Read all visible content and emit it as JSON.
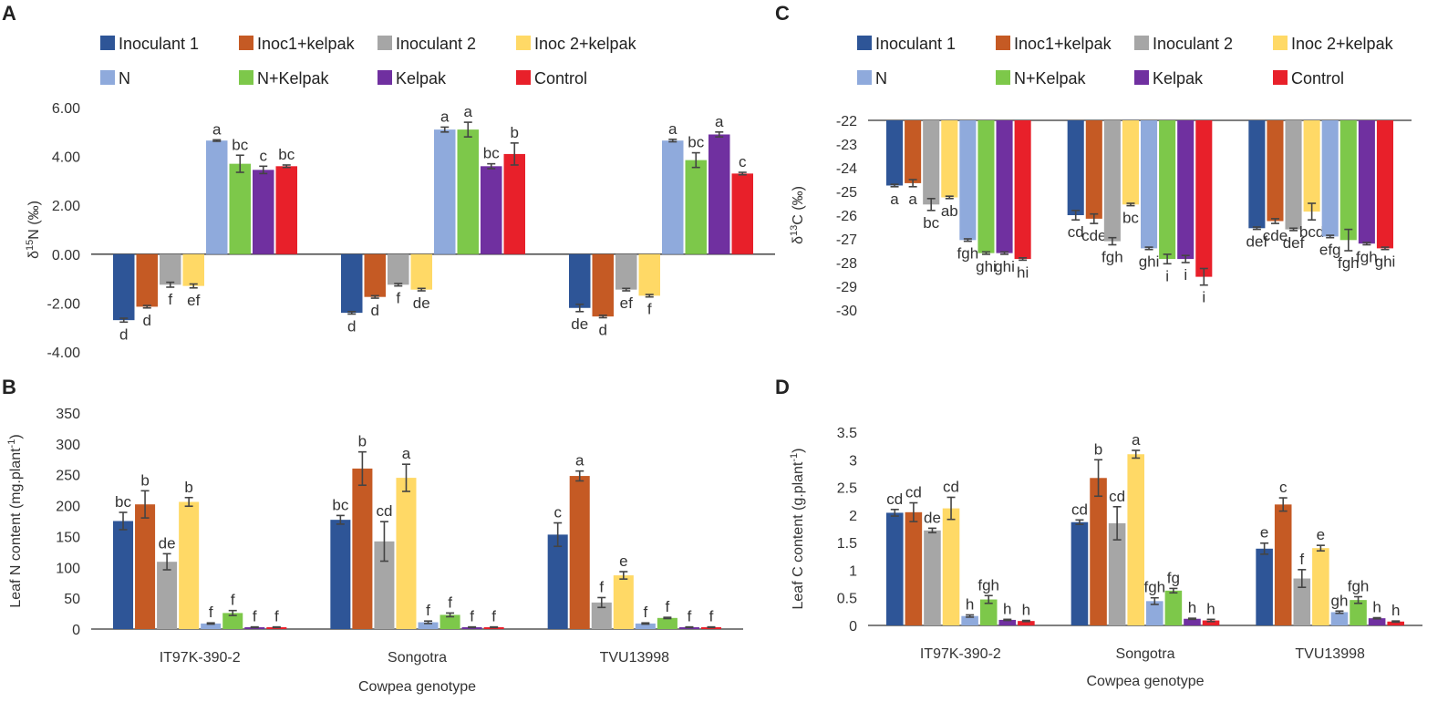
{
  "colors": {
    "Inoculant 1": "#2e5597",
    "Inoc1+kelpak": "#c55a24",
    "Inoculant 2": "#a6a6a6",
    "Inoc 2+kelpak": "#ffd966",
    "N": "#8faadc",
    "N+Kelpak": "#7dc84a",
    "Kelpak": "#7030a0",
    "Control": "#e8202a"
  },
  "chart_data": [
    {
      "panel": "A",
      "type": "bar",
      "title": "",
      "xlabel": "",
      "ylabel": "δ15N (‰)",
      "ylabel_parts": [
        "δ",
        "15",
        "N (‰)"
      ],
      "ylim": [
        -4,
        6
      ],
      "yticks": [
        6,
        4,
        2,
        0,
        -2,
        -4
      ],
      "ytick_labels": [
        "6.00",
        "4.00",
        "2.00",
        "0.00",
        "-2.00",
        "-4.00"
      ],
      "show_category_labels": false,
      "categories": [
        "IT97K-390-2",
        "Songotra",
        "TVU13998"
      ],
      "series": [
        {
          "name": "Inoculant 1",
          "values": [
            -2.7,
            -2.4,
            -2.2
          ],
          "errors": [
            0.08,
            0.05,
            0.15
          ],
          "letters": [
            "d",
            "d",
            "de"
          ]
        },
        {
          "name": "Inoc1+kelpak",
          "values": [
            -2.15,
            -1.75,
            -2.55
          ],
          "errors": [
            0.05,
            0.05,
            0.05
          ],
          "letters": [
            "d",
            "d",
            "d"
          ]
        },
        {
          "name": "Inoculant 2",
          "values": [
            -1.25,
            -1.25,
            -1.45
          ],
          "errors": [
            0.1,
            0.05,
            0.05
          ],
          "letters": [
            "f",
            "f",
            "ef"
          ]
        },
        {
          "name": "Inoc 2+kelpak",
          "values": [
            -1.3,
            -1.45,
            -1.7
          ],
          "errors": [
            0.08,
            0.05,
            0.05
          ],
          "letters": [
            "ef",
            "de",
            "f"
          ]
        },
        {
          "name": "N",
          "values": [
            4.65,
            5.1,
            4.65
          ],
          "errors": [
            0.03,
            0.1,
            0.05
          ],
          "letters": [
            "a",
            "a",
            "a"
          ]
        },
        {
          "name": "N+Kelpak",
          "values": [
            3.7,
            5.1,
            3.85
          ],
          "errors": [
            0.35,
            0.3,
            0.3
          ],
          "letters": [
            "bc",
            "a",
            "bc"
          ]
        },
        {
          "name": "Kelpak",
          "values": [
            3.45,
            3.6,
            4.9
          ],
          "errors": [
            0.15,
            0.1,
            0.1
          ],
          "letters": [
            "c",
            "bc",
            "a"
          ]
        },
        {
          "name": "Control",
          "values": [
            3.6,
            4.1,
            3.3
          ],
          "errors": [
            0.05,
            0.45,
            0.05
          ],
          "letters": [
            "bc",
            "b",
            "c"
          ]
        }
      ]
    },
    {
      "panel": "C",
      "type": "bar",
      "title": "",
      "xlabel": "",
      "ylabel": "δ13C (‰)",
      "ylabel_parts": [
        "δ",
        "13",
        "C (‰)"
      ],
      "ylim": [
        -30,
        -22
      ],
      "yticks": [
        -22,
        -23,
        -24,
        -25,
        -26,
        -27,
        -28,
        -29,
        -30
      ],
      "ytick_labels": [
        "-22",
        "-23",
        "-24",
        "-25",
        "-26",
        "-27",
        "-28",
        "-29",
        "-30"
      ],
      "show_category_labels": false,
      "categories": [
        "IT97K-390-2",
        "Songotra",
        "TVU13998"
      ],
      "series": [
        {
          "name": "Inoculant 1",
          "values": [
            -24.75,
            -26.0,
            -26.55
          ],
          "errors": [
            0.05,
            0.2,
            0.05
          ],
          "letters": [
            "a",
            "cd",
            "def"
          ]
        },
        {
          "name": "Inoc1+kelpak",
          "values": [
            -24.65,
            -26.15,
            -26.25
          ],
          "errors": [
            0.15,
            0.2,
            0.1
          ],
          "letters": [
            "a",
            "cde",
            "cde"
          ]
        },
        {
          "name": "Inoculant 2",
          "values": [
            -25.55,
            -27.1,
            -26.6
          ],
          "errors": [
            0.25,
            0.15,
            0.05
          ],
          "letters": [
            "bc",
            "fgh",
            "def"
          ]
        },
        {
          "name": "Inoc 2+kelpak",
          "values": [
            -25.25,
            -25.55,
            -25.85
          ],
          "errors": [
            0.05,
            0.05,
            0.35
          ],
          "letters": [
            "ab",
            "bc",
            "bcd"
          ]
        },
        {
          "name": "N",
          "values": [
            -27.05,
            -27.4,
            -26.9
          ],
          "errors": [
            0.05,
            0.05,
            0.05
          ],
          "letters": [
            "fgh",
            "ghi",
            "efg"
          ]
        },
        {
          "name": "N+Kelpak",
          "values": [
            -27.6,
            -27.85,
            -27.05
          ],
          "errors": [
            0.05,
            0.2,
            0.45
          ],
          "letters": [
            "ghi",
            "i",
            "fgh"
          ]
        },
        {
          "name": "Kelpak",
          "values": [
            -27.6,
            -27.85,
            -27.2
          ],
          "errors": [
            0.05,
            0.15,
            0.05
          ],
          "letters": [
            "ghi",
            "i",
            "fgh"
          ]
        },
        {
          "name": "Control",
          "values": [
            -27.85,
            -28.6,
            -27.4
          ],
          "errors": [
            0.05,
            0.35,
            0.05
          ],
          "letters": [
            "hi",
            "i",
            "ghi"
          ]
        }
      ]
    },
    {
      "panel": "B",
      "type": "bar",
      "title": "",
      "xlabel": "Cowpea genotype",
      "ylabel": "Leaf N content (mg.plant-1)",
      "ylabel_parts": [
        "Leaf N content (mg.plant",
        "-1",
        ")"
      ],
      "ylim": [
        0,
        350
      ],
      "yticks": [
        0,
        50,
        100,
        150,
        200,
        250,
        300,
        350
      ],
      "ytick_labels": [
        "0",
        "50",
        "100",
        "150",
        "200",
        "250",
        "300",
        "350"
      ],
      "show_category_labels": true,
      "categories": [
        "IT97K-390-2",
        "Songotra",
        "TVU13998"
      ],
      "series": [
        {
          "name": "Inoculant 1",
          "values": [
            175,
            177,
            153
          ],
          "errors": [
            14,
            7,
            19
          ],
          "letters": [
            "bc",
            "bc",
            "c"
          ]
        },
        {
          "name": "Inoc1+kelpak",
          "values": [
            202,
            260,
            248
          ],
          "errors": [
            22,
            27,
            8
          ],
          "letters": [
            "b",
            "b",
            "a"
          ]
        },
        {
          "name": "Inoculant 2",
          "values": [
            109,
            142,
            43
          ],
          "errors": [
            13,
            32,
            8
          ],
          "letters": [
            "de",
            "cd",
            "f"
          ]
        },
        {
          "name": "Inoc 2+kelpak",
          "values": [
            206,
            245,
            87
          ],
          "errors": [
            7,
            22,
            6
          ],
          "letters": [
            "b",
            "a",
            "e"
          ]
        },
        {
          "name": "N",
          "values": [
            9,
            11,
            9
          ],
          "errors": [
            1,
            2,
            1
          ],
          "letters": [
            "f",
            "f",
            "f"
          ]
        },
        {
          "name": "N+Kelpak",
          "values": [
            26,
            23,
            18
          ],
          "errors": [
            4,
            3,
            1
          ],
          "letters": [
            "f",
            "f",
            "f"
          ]
        },
        {
          "name": "Kelpak",
          "values": [
            3,
            3,
            3
          ],
          "errors": [
            0.5,
            0.5,
            0.5
          ],
          "letters": [
            "f",
            "f",
            "f"
          ]
        },
        {
          "name": "Control",
          "values": [
            3,
            3,
            3
          ],
          "errors": [
            0.5,
            0.5,
            0.5
          ],
          "letters": [
            "f",
            "f",
            "f"
          ]
        }
      ]
    },
    {
      "panel": "D",
      "type": "bar",
      "title": "",
      "xlabel": "Cowpea genotype",
      "ylabel": "Leaf C content (g.plant-1)",
      "ylabel_parts": [
        "Leaf C content (g.plant",
        "-1",
        ")"
      ],
      "ylim": [
        0,
        3.5
      ],
      "yticks": [
        0,
        0.5,
        1,
        1.5,
        2,
        2.5,
        3,
        3.5
      ],
      "ytick_labels": [
        "0",
        "0.5",
        "1",
        "1.5",
        "2",
        "2.5",
        "3",
        "3.5"
      ],
      "show_category_labels": true,
      "categories": [
        "IT97K-390-2",
        "Songotra",
        "TVU13998"
      ],
      "series": [
        {
          "name": "Inoculant 1",
          "values": [
            2.04,
            1.87,
            1.39
          ],
          "errors": [
            0.06,
            0.04,
            0.1
          ],
          "letters": [
            "cd",
            "cd",
            "e"
          ]
        },
        {
          "name": "Inoc1+kelpak",
          "values": [
            2.05,
            2.67,
            2.19
          ],
          "errors": [
            0.17,
            0.33,
            0.12
          ],
          "letters": [
            "cd",
            "b",
            "c"
          ]
        },
        {
          "name": "Inoculant 2",
          "values": [
            1.72,
            1.85,
            0.85
          ],
          "errors": [
            0.04,
            0.3,
            0.16
          ],
          "letters": [
            "de",
            "cd",
            "f"
          ]
        },
        {
          "name": "Inoc 2+kelpak",
          "values": [
            2.12,
            3.1,
            1.4
          ],
          "errors": [
            0.2,
            0.07,
            0.05
          ],
          "letters": [
            "cd",
            "a",
            "e"
          ]
        },
        {
          "name": "N",
          "values": [
            0.17,
            0.44,
            0.24
          ],
          "errors": [
            0.02,
            0.06,
            0.02
          ],
          "letters": [
            "h",
            "fgh",
            "gh"
          ]
        },
        {
          "name": "N+Kelpak",
          "values": [
            0.47,
            0.63,
            0.46
          ],
          "errors": [
            0.07,
            0.04,
            0.06
          ],
          "letters": [
            "fgh",
            "fg",
            "fgh"
          ]
        },
        {
          "name": "Kelpak",
          "values": [
            0.1,
            0.12,
            0.13
          ],
          "errors": [
            0.01,
            0.01,
            0.01
          ],
          "letters": [
            "h",
            "h",
            "h"
          ]
        },
        {
          "name": "Control",
          "values": [
            0.08,
            0.09,
            0.07
          ],
          "errors": [
            0.01,
            0.02,
            0.01
          ],
          "letters": [
            "h",
            "h",
            "h"
          ]
        }
      ]
    }
  ]
}
